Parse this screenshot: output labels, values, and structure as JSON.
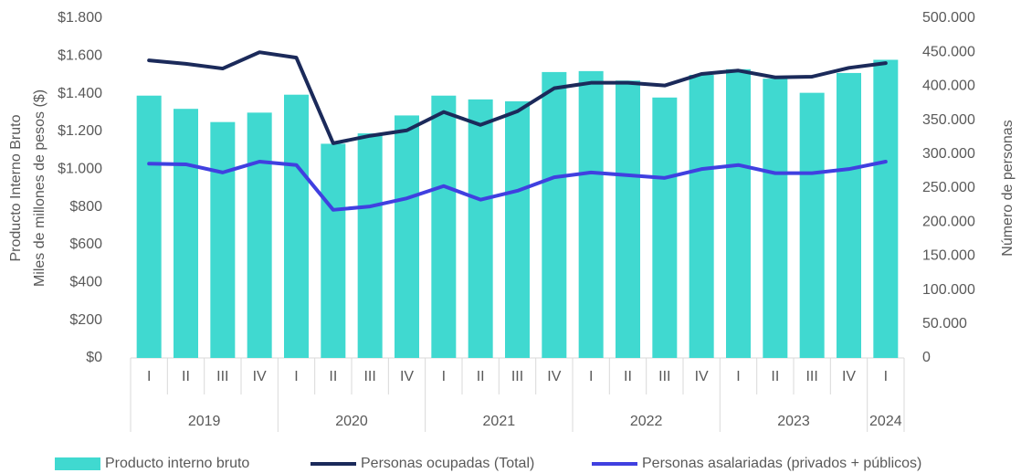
{
  "chart_data": {
    "type": "bar_line",
    "y_title_lines": [
      "Producto Interno Bruto",
      "Miles de millones de pesos ($)"
    ],
    "y2_title": "Número de personas",
    "groups": [
      {
        "label": "2019",
        "categories": [
          "I",
          "II",
          "III",
          "IV"
        ]
      },
      {
        "label": "2020",
        "categories": [
          "I",
          "II",
          "III",
          "IV"
        ]
      },
      {
        "label": "2021",
        "categories": [
          "I",
          "II",
          "III",
          "IV"
        ]
      },
      {
        "label": "2022",
        "categories": [
          "I",
          "II",
          "III",
          "IV"
        ]
      },
      {
        "label": "2023",
        "categories": [
          "I",
          "II",
          "III",
          "IV"
        ]
      },
      {
        "label": "2024",
        "categories": [
          "I"
        ]
      }
    ],
    "ylim": [
      0,
      1800
    ],
    "yticks": [
      {
        "value": 0,
        "label": "$0"
      },
      {
        "value": 200,
        "label": "$200"
      },
      {
        "value": 400,
        "label": "$400"
      },
      {
        "value": 600,
        "label": "$600"
      },
      {
        "value": 800,
        "label": "$800"
      },
      {
        "value": 1000,
        "label": "$1.000"
      },
      {
        "value": 1200,
        "label": "$1.200"
      },
      {
        "value": 1400,
        "label": "$1.400"
      },
      {
        "value": 1600,
        "label": "$1.600"
      },
      {
        "value": 1800,
        "label": "$1.800"
      }
    ],
    "y2lim": [
      0,
      500000
    ],
    "y2ticks": [
      0,
      {
        "value": 50000,
        "label": "50.000"
      },
      {
        "value": 100000,
        "label": "100.000"
      },
      {
        "value": 150000,
        "label": "150.000"
      },
      {
        "value": 200000,
        "label": "200.000"
      },
      {
        "value": 250000,
        "label": "250.000"
      },
      {
        "value": 300000,
        "label": "300.000"
      },
      {
        "value": 350000,
        "label": "350.000"
      },
      {
        "value": 400000,
        "label": "400.000"
      },
      {
        "value": 450000,
        "label": "450.000"
      },
      {
        "value": 500000,
        "label": "500.000"
      }
    ],
    "series": [
      {
        "name": "Producto interno bruto",
        "kind": "bar",
        "color": "#40d9d0",
        "values": [
          1390,
          1320,
          1250,
          1300,
          1395,
          1135,
          1190,
          1285,
          1390,
          1370,
          1360,
          1515,
          1520,
          1470,
          1380,
          1500,
          1530,
          1480,
          1405,
          1510,
          1580
        ]
      },
      {
        "name": "Personas ocupadas (Total)",
        "kind": "line",
        "axis": "y2",
        "color": "#1b2a5a",
        "values": [
          438000,
          433000,
          426000,
          450000,
          442000,
          316000,
          327000,
          335000,
          362000,
          343000,
          363000,
          397000,
          405000,
          405000,
          401000,
          418000,
          423000,
          413000,
          414000,
          427000,
          434000
        ]
      },
      {
        "name": "Personas asalariadas (privados + públicos)",
        "kind": "line",
        "axis": "y2",
        "color": "#4040e0",
        "values": [
          286000,
          285000,
          273000,
          289000,
          284000,
          218000,
          223000,
          235000,
          253000,
          233000,
          246000,
          266000,
          273000,
          269000,
          265000,
          278000,
          284000,
          272000,
          272000,
          278000,
          289000
        ]
      }
    ]
  }
}
